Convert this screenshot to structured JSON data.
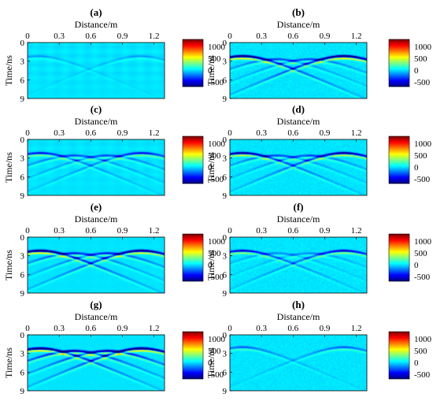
{
  "chart_data": [
    {
      "type": "heatmap",
      "label": "(a)",
      "xlabel": "Distance/m",
      "ylabel": "Time/ns",
      "xticks": [
        "0",
        "0.3",
        "0.6",
        "0.9",
        "1.2"
      ],
      "yticks": [
        "0",
        "3",
        "6",
        "9"
      ],
      "xlim": [
        0,
        1.3
      ],
      "ylim": [
        0,
        9
      ],
      "colorbar": {
        "ticks": [
          "1000",
          "500",
          "0",
          "-500"
        ],
        "range": [
          -700,
          1300
        ]
      },
      "hyperbolas": [
        {
          "apex_x": 0.1,
          "apex_t": 2.2,
          "amp": 0.15
        },
        {
          "apex_x": 1.07,
          "apex_t": 2.2,
          "amp": 0.15
        }
      ],
      "noise": 0.06,
      "crosshatch": 0.5
    },
    {
      "type": "heatmap",
      "label": "(b)",
      "xlabel": "Distance/m",
      "ylabel": "Time/ns",
      "xticks": [
        "0",
        "0.3",
        "0.6",
        "0.9",
        "1.2"
      ],
      "yticks": [
        "0",
        "3",
        "6",
        "9"
      ],
      "xlim": [
        0,
        1.3
      ],
      "ylim": [
        0,
        9
      ],
      "colorbar": {
        "ticks": [
          "1000",
          "500",
          "0",
          "-500"
        ],
        "range": [
          -700,
          1300
        ]
      },
      "hyperbolas": [
        {
          "apex_x": 0.12,
          "apex_t": 2.2,
          "amp": 1.0
        },
        {
          "apex_x": 0.44,
          "apex_t": 2.7,
          "amp": 0.35
        },
        {
          "apex_x": 0.76,
          "apex_t": 2.7,
          "amp": 0.35
        },
        {
          "apex_x": 1.08,
          "apex_t": 2.2,
          "amp": 1.0
        }
      ],
      "noise": 0.3,
      "crosshatch": 0.0
    },
    {
      "type": "heatmap",
      "label": "(c)",
      "xlabel": "Distance/m",
      "ylabel": "Time/ns",
      "xticks": [
        "0",
        "0.3",
        "0.6",
        "0.9",
        "1.2"
      ],
      "yticks": [
        "0",
        "3",
        "6",
        "9"
      ],
      "xlim": [
        0,
        1.3
      ],
      "ylim": [
        0,
        9
      ],
      "colorbar": {
        "ticks": [
          "1000",
          "500",
          "0",
          "-500"
        ],
        "range": [
          -700,
          1300
        ]
      },
      "hyperbolas": [
        {
          "apex_x": 0.12,
          "apex_t": 2.2,
          "amp": 0.5
        },
        {
          "apex_x": 0.44,
          "apex_t": 2.6,
          "amp": 0.35
        },
        {
          "apex_x": 0.76,
          "apex_t": 2.6,
          "amp": 0.35
        },
        {
          "apex_x": 1.08,
          "apex_t": 2.2,
          "amp": 0.5
        }
      ],
      "noise": 0.08,
      "crosshatch": 0.4
    },
    {
      "type": "heatmap",
      "label": "(d)",
      "xlabel": "Distance/m",
      "ylabel": "Time/ns",
      "xticks": [
        "0",
        "0.3",
        "0.6",
        "0.9",
        "1.2"
      ],
      "yticks": [
        "0",
        "3",
        "6",
        "9"
      ],
      "xlim": [
        0,
        1.3
      ],
      "ylim": [
        0,
        9
      ],
      "colorbar": {
        "ticks": [
          "1000",
          "500",
          "0",
          "-500"
        ],
        "range": [
          -700,
          1300
        ]
      },
      "hyperbolas": [
        {
          "apex_x": 0.12,
          "apex_t": 2.2,
          "amp": 0.8
        },
        {
          "apex_x": 0.44,
          "apex_t": 2.6,
          "amp": 0.35
        },
        {
          "apex_x": 0.76,
          "apex_t": 2.6,
          "amp": 0.35
        },
        {
          "apex_x": 1.08,
          "apex_t": 2.2,
          "amp": 0.8
        }
      ],
      "noise": 0.28,
      "crosshatch": 0.0
    },
    {
      "type": "heatmap",
      "label": "(e)",
      "xlabel": "Distance/m",
      "ylabel": "Time/ns",
      "xticks": [
        "0",
        "0.3",
        "0.6",
        "0.9",
        "1.2"
      ],
      "yticks": [
        "0",
        "3",
        "6",
        "9"
      ],
      "xlim": [
        0,
        1.3
      ],
      "ylim": [
        0,
        9
      ],
      "colorbar": {
        "ticks": [
          "1000",
          "500",
          "0",
          "-500"
        ],
        "range": [
          -700,
          1300
        ]
      },
      "hyperbolas": [
        {
          "apex_x": 0.12,
          "apex_t": 2.2,
          "amp": 1.0
        },
        {
          "apex_x": 0.44,
          "apex_t": 2.6,
          "amp": 0.45
        },
        {
          "apex_x": 0.76,
          "apex_t": 2.6,
          "amp": 0.45
        },
        {
          "apex_x": 1.08,
          "apex_t": 2.2,
          "amp": 0.9
        }
      ],
      "noise": 0.1,
      "crosshatch": 0.15
    },
    {
      "type": "heatmap",
      "label": "(f)",
      "xlabel": "Distance/m",
      "ylabel": "Time/ns",
      "xticks": [
        "0",
        "0.3",
        "0.6",
        "0.9",
        "1.2"
      ],
      "yticks": [
        "0",
        "3",
        "6",
        "9"
      ],
      "xlim": [
        0,
        1.3
      ],
      "ylim": [
        0,
        9
      ],
      "colorbar": {
        "ticks": [
          "1000",
          "500",
          "0",
          "-500"
        ],
        "range": [
          -700,
          1300
        ]
      },
      "hyperbolas": [
        {
          "apex_x": 0.12,
          "apex_t": 2.2,
          "amp": 0.6
        },
        {
          "apex_x": 0.44,
          "apex_t": 2.6,
          "amp": 0.2
        },
        {
          "apex_x": 0.76,
          "apex_t": 2.6,
          "amp": 0.2
        },
        {
          "apex_x": 1.08,
          "apex_t": 2.2,
          "amp": 0.6
        }
      ],
      "noise": 0.32,
      "crosshatch": 0.0
    },
    {
      "type": "heatmap",
      "label": "(g)",
      "xlabel": "Distance/m",
      "ylabel": "Time/ns",
      "xticks": [
        "0",
        "0.3",
        "0.6",
        "0.9",
        "1.2"
      ],
      "yticks": [
        "0",
        "3",
        "6",
        "9"
      ],
      "xlim": [
        0,
        1.3
      ],
      "ylim": [
        0,
        9
      ],
      "colorbar": {
        "ticks": [
          "1000",
          "500",
          "0",
          "-500"
        ],
        "range": [
          -700,
          1300
        ]
      },
      "hyperbolas": [
        {
          "apex_x": 0.12,
          "apex_t": 2.2,
          "amp": 1.0
        },
        {
          "apex_x": 0.44,
          "apex_t": 2.6,
          "amp": 0.7
        },
        {
          "apex_x": 0.76,
          "apex_t": 2.6,
          "amp": 0.7
        },
        {
          "apex_x": 1.08,
          "apex_t": 2.2,
          "amp": 1.0
        }
      ],
      "noise": 0.12,
      "crosshatch": 0.0
    },
    {
      "type": "heatmap",
      "label": "(h)",
      "xlabel": "Distance/m",
      "ylabel": "Time/ns",
      "xticks": [
        "0",
        "0.3",
        "0.6",
        "0.9",
        "1.2"
      ],
      "yticks": [
        "0",
        "3",
        "6",
        "9"
      ],
      "xlim": [
        0,
        1.3
      ],
      "ylim": [
        0,
        9
      ],
      "colorbar": {
        "ticks": [
          "1000",
          "500",
          "0",
          "-500"
        ],
        "range": [
          -700,
          1300
        ]
      },
      "hyperbolas": [
        {
          "apex_x": 0.12,
          "apex_t": 2.0,
          "amp": 0.3
        },
        {
          "apex_x": 1.08,
          "apex_t": 2.0,
          "amp": 0.3
        }
      ],
      "noise": 0.3,
      "crosshatch": 0.0
    }
  ],
  "colors": {
    "background_field": "#3fb5e6",
    "text": "#000000"
  },
  "colormap": "jet"
}
